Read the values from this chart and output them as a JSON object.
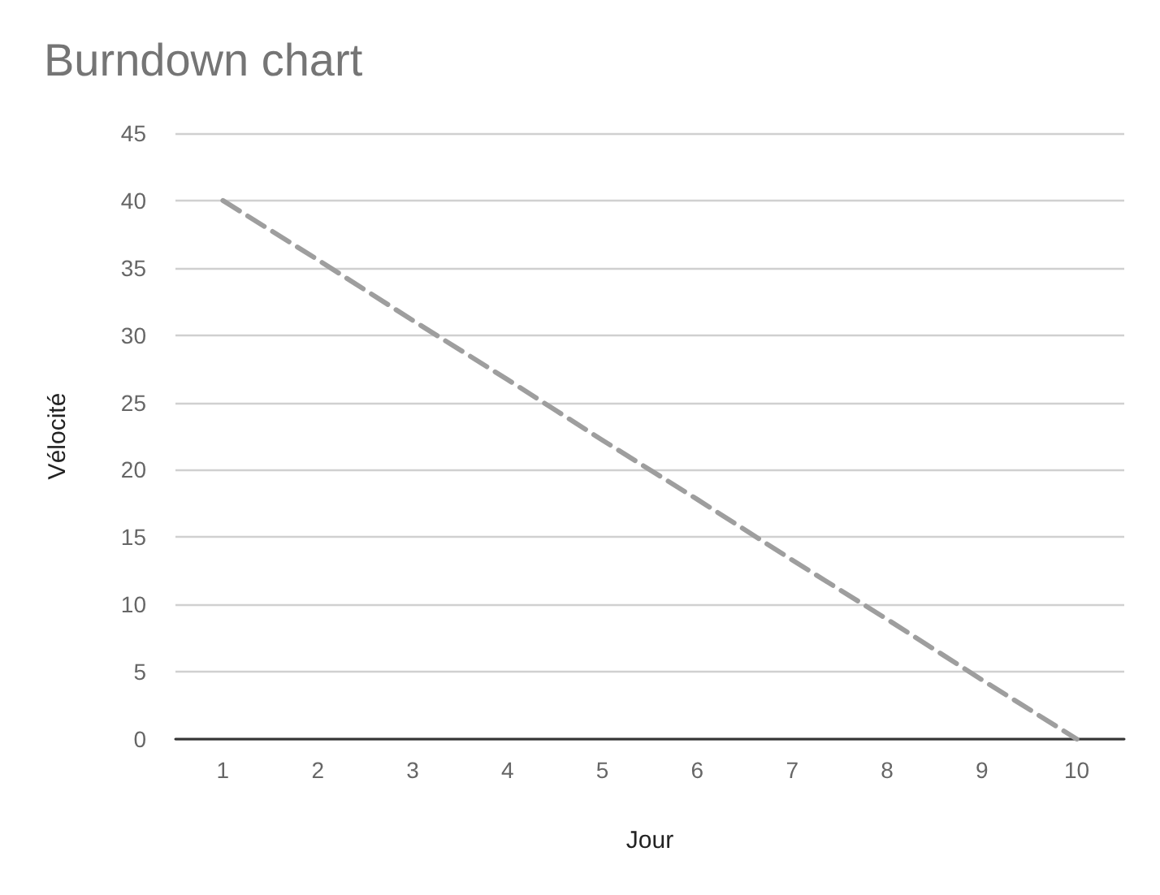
{
  "chart_data": {
    "type": "line",
    "title": "Burndown chart",
    "xlabel": "Jour",
    "ylabel": "Vélocité",
    "categories": [
      "1",
      "2",
      "3",
      "4",
      "5",
      "6",
      "7",
      "8",
      "9",
      "10"
    ],
    "series": [
      {
        "color": "#9e9e9e",
        "values": [
          40,
          35.6,
          31.1,
          26.7,
          22.2,
          17.8,
          13.3,
          8.9,
          4.4,
          0
        ]
      }
    ],
    "ylim": [
      0,
      45
    ],
    "yticks": [
      0,
      5,
      10,
      15,
      20,
      25,
      30,
      35,
      40,
      45
    ],
    "grid": "y",
    "marker": "none",
    "line_style": "dashed"
  }
}
